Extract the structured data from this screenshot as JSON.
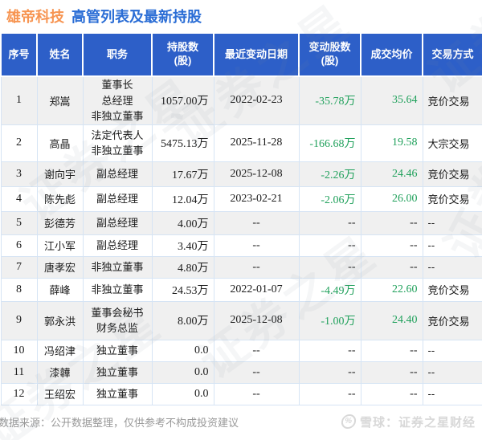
{
  "title": {
    "company": "雄帝科技",
    "heading": "高管列表及最新持股"
  },
  "chart_data": {
    "type": "table",
    "title": "雄帝科技 高管列表及最新持股",
    "columns": [
      "序号",
      "姓名",
      "职务",
      "持股数\n(股)",
      "最近变动日期",
      "变动股数\n(股)",
      "成交均价",
      "交易方式"
    ],
    "rows": [
      [
        "1",
        "郑嵩",
        "董事长\n总经理\n非独立董事",
        "1057.00万",
        "2022-02-23",
        "-35.78万",
        "35.64",
        "竞价交易"
      ],
      [
        "2",
        "高晶",
        "法定代表人\n非独立董事",
        "5475.13万",
        "2025-11-28",
        "-166.68万",
        "19.58",
        "大宗交易"
      ],
      [
        "3",
        "谢向宇",
        "副总经理",
        "17.67万",
        "2025-12-08",
        "-2.26万",
        "24.46",
        "竞价交易"
      ],
      [
        "4",
        "陈先彪",
        "副总经理",
        "12.04万",
        "2023-02-21",
        "-2.06万",
        "26.00",
        "竞价交易"
      ],
      [
        "5",
        "彭德芳",
        "副总经理",
        "4.00万",
        "--",
        "--",
        "--",
        "--"
      ],
      [
        "6",
        "江小军",
        "副总经理",
        "3.40万",
        "--",
        "--",
        "--",
        "--"
      ],
      [
        "7",
        "唐孝宏",
        "非独立董事",
        "4.80万",
        "--",
        "--",
        "--",
        "--"
      ],
      [
        "8",
        "薛峰",
        "非独立董事",
        "24.53万",
        "2022-01-07",
        "-4.49万",
        "22.60",
        "竞价交易"
      ],
      [
        "9",
        "郭永洪",
        "董事会秘书\n财务总监",
        "8.00万",
        "2025-12-08",
        "-1.00万",
        "24.40",
        "竞价交易"
      ],
      [
        "10",
        "冯绍津",
        "独立董事",
        "0.0",
        "--",
        "--",
        "--",
        "--"
      ],
      [
        "11",
        "漆韡",
        "独立董事",
        "0.0",
        "--",
        "--",
        "--",
        "--"
      ],
      [
        "12",
        "王绍宏",
        "独立董事",
        "0.0",
        "--",
        "--",
        "--",
        "--"
      ]
    ],
    "negative_change_color": "#21a15c",
    "legend": "none",
    "grid": "light-blue cell borders, alternating row shading"
  },
  "footer": {
    "disclaimer": "数据来源：公开数据整理，仅供参考不构成投资建议",
    "brand": "雪球：证券之星财经",
    "brand_logo_glyph": "%"
  },
  "watermark_text": "证券之星",
  "colors": {
    "header_bg": "#2d5fc8",
    "title_company": "#f79552",
    "title_heading": "#2a6dd5",
    "value_green": "#21a15c",
    "row_alt": "#f0f0f0",
    "cell_border": "#d6e4f4",
    "disclaimer_gray": "#999999",
    "brand_gray": "#d8d8d8"
  }
}
